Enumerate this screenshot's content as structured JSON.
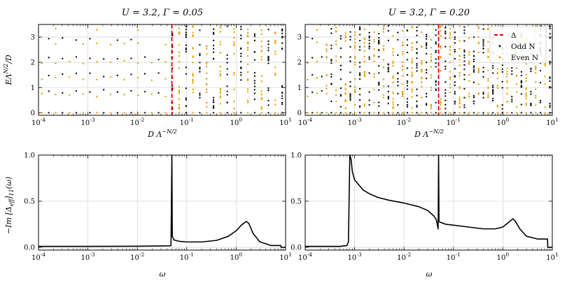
{
  "chart_data": [
    {
      "type": "scatter",
      "panel": "top-left",
      "title": "U = 3.2, Γ = 0.05",
      "xlabel": "DΛ^{-N/2}",
      "ylabel": "EΛ^{N/2}/D",
      "xscale": "log",
      "xlim": [
        0.0001,
        10
      ],
      "ylim": [
        -0.1,
        3.5
      ],
      "xticks": [
        "10^{-4}",
        "10^{-3}",
        "10^{-2}",
        "10^{-1}",
        "10^{0}",
        "10^{1}"
      ],
      "yticks": [
        "0",
        "1",
        "2",
        "3"
      ],
      "delta_line": 0.05,
      "grid": true
    },
    {
      "type": "scatter",
      "panel": "top-right",
      "title": "U = 3.2, Γ = 0.20",
      "xlabel": "DΛ^{-N/2}",
      "ylabel": "",
      "xscale": "log",
      "xlim": [
        0.0001,
        10
      ],
      "ylim": [
        -0.1,
        3.5
      ],
      "xticks": [
        "10^{-4}",
        "10^{-3}",
        "10^{-2}",
        "10^{-1}",
        "10^{0}",
        "10^{1}"
      ],
      "yticks": [
        "0",
        "1",
        "2",
        "3"
      ],
      "delta_line": 0.05,
      "legend": {
        "position": "top-right",
        "entries": [
          "Δ",
          "Odd N",
          "Even N"
        ]
      },
      "grid": true
    },
    {
      "type": "line",
      "panel": "bottom-left",
      "xlabel": "ω",
      "ylabel": "−Im [Δ_eff]_{11}(ω)",
      "xscale": "log",
      "xlim": [
        0.0001,
        10
      ],
      "ylim": [
        -0.03,
        1.0
      ],
      "xticks": [
        "10^{-4}",
        "10^{-3}",
        "10^{-2}",
        "10^{-1}",
        "10^{0}",
        "10^{1}"
      ],
      "yticks": [
        "0.0",
        "0.5",
        "1.0"
      ],
      "x": [
        0.0001,
        0.001,
        0.01,
        0.045,
        0.048,
        0.05,
        0.051,
        0.055,
        0.07,
        0.1,
        0.2,
        0.4,
        0.7,
        1.0,
        1.3,
        1.6,
        1.8,
        2.2,
        3,
        5,
        8,
        8.1,
        10
      ],
      "y": [
        0.01,
        0.01,
        0.012,
        0.016,
        0.02,
        1.0,
        0.12,
        0.08,
        0.065,
        0.058,
        0.058,
        0.075,
        0.12,
        0.18,
        0.245,
        0.28,
        0.26,
        0.15,
        0.06,
        0.02,
        0.02,
        0.0,
        0.0
      ],
      "grid": true
    },
    {
      "type": "line",
      "panel": "bottom-right",
      "xlabel": "ω",
      "ylabel": "",
      "xscale": "log",
      "xlim": [
        0.0001,
        10
      ],
      "ylim": [
        -0.03,
        1.0
      ],
      "xticks": [
        "10^{-4}",
        "10^{-3}",
        "10^{-2}",
        "10^{-1}",
        "10^{0}",
        "10^{1}"
      ],
      "yticks": [
        "0.0",
        "0.5",
        "1.0"
      ],
      "x": [
        0.0001,
        0.0005,
        0.0007,
        0.00075,
        0.0008,
        0.00085,
        0.0009,
        0.001,
        0.0015,
        0.002,
        0.003,
        0.005,
        0.01,
        0.02,
        0.03,
        0.04,
        0.045,
        0.049,
        0.05,
        0.051,
        0.055,
        0.07,
        0.1,
        0.2,
        0.4,
        0.7,
        1.0,
        1.3,
        1.6,
        1.8,
        2.2,
        3,
        5,
        8,
        8.1,
        10
      ],
      "y": [
        0.01,
        0.01,
        0.02,
        0.06,
        1.0,
        0.95,
        0.82,
        0.73,
        0.62,
        0.58,
        0.54,
        0.51,
        0.48,
        0.44,
        0.4,
        0.34,
        0.3,
        0.2,
        1.0,
        0.28,
        0.27,
        0.25,
        0.24,
        0.22,
        0.2,
        0.2,
        0.22,
        0.27,
        0.31,
        0.28,
        0.2,
        0.12,
        0.09,
        0.09,
        0.0,
        0.0
      ],
      "grid": true
    }
  ],
  "colors": {
    "odd": "#111111",
    "even": "#e69f00",
    "delta": "#dd0000",
    "grid": "#d9d9d9",
    "line": "#000000"
  }
}
